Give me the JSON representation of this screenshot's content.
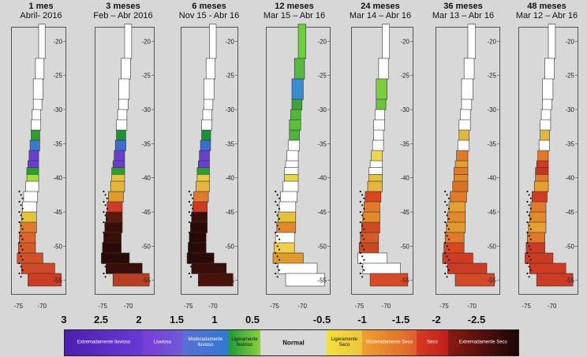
{
  "panels": [
    {
      "title": "1 mes",
      "subtitle": "Abril- 2016",
      "fill": [
        "#ffffff",
        "#ffffff",
        "#ffffff",
        "#ffffff",
        "#ffffff",
        "#ffffff",
        "#2e9e2e",
        "#3a7ad0",
        "#6a3fd0",
        "#6a3fd0",
        "#2ca02c",
        "#a7df3a",
        "#ffffff",
        "#ffffff",
        "#ffffff",
        "#e2c536",
        "#e07a2a",
        "#e0642a",
        "#d55a2a",
        "#d25028",
        "#cf4a26",
        "#cc3b23"
      ]
    },
    {
      "title": "3 meses",
      "subtitle": "Feb – Abr 2016",
      "fill": [
        "#ffffff",
        "#ffffff",
        "#ffffff",
        "#ffffff",
        "#ffffff",
        "#ffffff",
        "#1f8f3a",
        "#3a6ed0",
        "#6a3fd0",
        "#6a3fd0",
        "#2ca02c",
        "#e0c53a",
        "#e3b63c",
        "#e09a2c",
        "#cf3a22",
        "#5a1a10",
        "#3a0e08",
        "#3a0e08",
        "#2a0a06",
        "#2a0a06",
        "#3a0e08",
        "#b84022"
      ]
    },
    {
      "title": "6 meses",
      "subtitle": "Nov 15 - Abr 16",
      "fill": [
        "#ffffff",
        "#ffffff",
        "#ffffff",
        "#ffffff",
        "#ffffff",
        "#ffffff",
        "#1f8f3a",
        "#3a6ed0",
        "#6a3fd0",
        "#6a3fd0",
        "#2ca02c",
        "#e8c83e",
        "#e3b63c",
        "#e07a2a",
        "#cf3a22",
        "#3a0e08",
        "#2a0a06",
        "#2a0a06",
        "#2a0a06",
        "#2a0a06",
        "#3a0e08",
        "#4a1208"
      ]
    },
    {
      "title": "12 meses",
      "subtitle": "Mar 15 – Abr 16",
      "fill": [
        "#6ccf3e",
        "#58b842",
        "#3a8cd0",
        "#3fa53a",
        "#50b83a",
        "#5cbe3a",
        "#4fb43a",
        "#ffffff",
        "#ffffff",
        "#ffffff",
        "#ffffff",
        "#e6d642",
        "#ffffff",
        "#ffffff",
        "#ffffff",
        "#e6c23a",
        "#e08a2c",
        "#ffffff",
        "#f0cf4a",
        "#e09a2c",
        "#ffffff",
        "#ffffff"
      ]
    },
    {
      "title": "24 meses",
      "subtitle": "Mar 14 – Abr 16",
      "fill": [
        "#ffffff",
        "#ffffff",
        "#7ccf3e",
        "#6cc43a",
        "#ffffff",
        "#ffffff",
        "#ffffff",
        "#ffffff",
        "#f0d64a",
        "#ffffff",
        "#ffffff",
        "#e6c23a",
        "#e3b63c",
        "#d8461f",
        "#e07a2a",
        "#e08a2c",
        "#cf4a24",
        "#d55a2a",
        "#c84a20",
        "#ffffff",
        "#ffffff",
        "#d84a24"
      ]
    },
    {
      "title": "36 meses",
      "subtitle": "Mar 13 – Abr 16",
      "fill": [
        "#ffffff",
        "#ffffff",
        "#ffffff",
        "#ffffff",
        "#ffffff",
        "#ffffff",
        "#e3b63c",
        "#ffffff",
        "#e07a2a",
        "#e6a030",
        "#e07a2a",
        "#e08a2c",
        "#d8741f",
        "#e07a2a",
        "#e6a030",
        "#e08a2c",
        "#e09a2c",
        "#e07a2a",
        "#d8461f",
        "#cf3a22",
        "#cc3b23",
        "#d24a26"
      ]
    },
    {
      "title": "48 meses",
      "subtitle": "Mar 12 – Abr 16",
      "fill": [
        "#ffffff",
        "#ffffff",
        "#ffffff",
        "#ffffff",
        "#ffffff",
        "#ffffff",
        "#e3b63c",
        "#ffffff",
        "#e07a2a",
        "#cf3a22",
        "#c83222",
        "#e07a2a",
        "#e6a030",
        "#cf3a22",
        "#e07a2a",
        "#e08a2c",
        "#e6a030",
        "#e07a2a",
        "#cf3a22",
        "#cc3b23",
        "#cf3a22",
        "#cc3b23"
      ]
    }
  ],
  "y_ticks": [
    "-20",
    "-25",
    "-30",
    "-35",
    "-40",
    "-45",
    "-50",
    "-55"
  ],
  "x_ticks": [
    "-75",
    "-70"
  ],
  "scale_numbers": [
    "3",
    "2.5",
    "2",
    "1.5",
    "1",
    "0.5",
    "-0.5",
    "-1",
    "-1.5",
    "-2",
    "-2.5"
  ],
  "legend": {
    "segments": [
      {
        "label": "Extremadamente lluvioso",
        "from": "#4a1fb0",
        "to": "#6a3ad8",
        "text": "#ffffff",
        "big": false,
        "weight": 2
      },
      {
        "label": "Lluvioso",
        "from": "#7a3ad8",
        "to": "#6f5bd8",
        "text": "#ffffff",
        "big": false,
        "weight": 1
      },
      {
        "label": "Moderadamente lluvioso",
        "from": "#5b6fd8",
        "to": "#2f7ad0",
        "text": "#ffffff",
        "big": false,
        "weight": 1.2
      },
      {
        "label": "Ligeramente lluvioso",
        "from": "#1f9a3a",
        "to": "#8ad23a",
        "text": "#111111",
        "big": false,
        "weight": 0.8
      },
      {
        "label": "Normal",
        "from": "#d8d8d8",
        "to": "#d8d8d8",
        "text": "#111111",
        "big": true,
        "weight": 1.7
      },
      {
        "label": "Ligeramente Seco",
        "from": "#f2e23a",
        "to": "#f0c43a",
        "text": "#111111",
        "big": false,
        "weight": 0.9
      },
      {
        "label": "Moderadamente Seco",
        "from": "#f0a030",
        "to": "#e0602a",
        "text": "#ffffff",
        "big": false,
        "weight": 1.4
      },
      {
        "label": "Seco",
        "from": "#d83a22",
        "to": "#c0201a",
        "text": "#ffffff",
        "big": false,
        "weight": 0.8
      },
      {
        "label": "Extremadamente Seco",
        "from": "#8a1a12",
        "to": "#1a0606",
        "text": "#ffffff",
        "big": false,
        "weight": 1.8
      }
    ]
  }
}
